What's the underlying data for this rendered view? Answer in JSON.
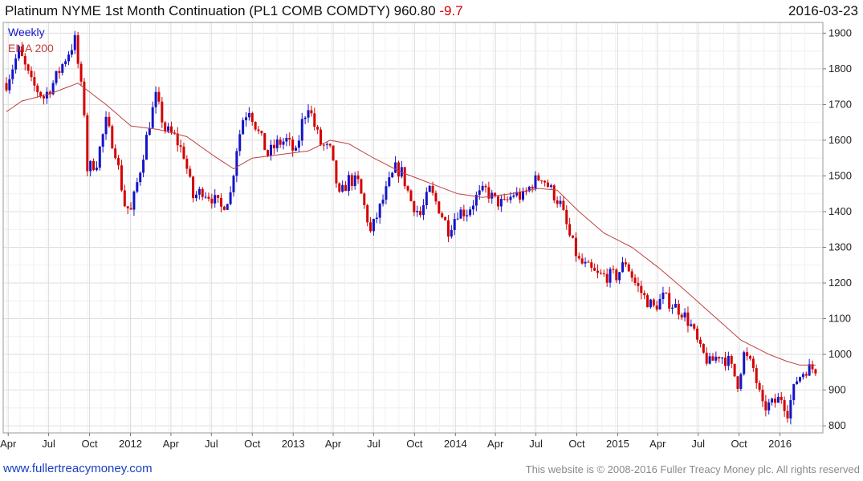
{
  "header": {
    "title": "Platinum NYME 1st Month Continuation (PL1 COMB COMDTY) 960.80",
    "change": "-9.7",
    "date": "2016-03-23"
  },
  "footer": {
    "website": "www.fullertreacymoney.com",
    "copyright": "This website is © 2008-2016 Fuller Treacy Money plc. All rights reserved"
  },
  "colors": {
    "up": "#1414c8",
    "down": "#d40000",
    "ema": "#c04040",
    "grid": "#dddddd"
  },
  "chart_data": {
    "type": "candlestick",
    "legend": [
      {
        "label": "Weekly",
        "color": "#1414c8"
      },
      {
        "label": "EMA 200",
        "color": "#c04040"
      }
    ],
    "ylim": [
      780,
      1930
    ],
    "yticks": [
      800,
      900,
      1000,
      1100,
      1200,
      1300,
      1400,
      1500,
      1600,
      1700,
      1800,
      1900
    ],
    "x_start": "2011-03-28",
    "x_end": "2016-03-23",
    "xticks": [
      {
        "label": "Apr",
        "date": "2011-04-01"
      },
      {
        "label": "Jul",
        "date": "2011-07-01"
      },
      {
        "label": "Oct",
        "date": "2011-10-01"
      },
      {
        "label": "2012",
        "date": "2012-01-01"
      },
      {
        "label": "Apr",
        "date": "2012-04-01"
      },
      {
        "label": "Jul",
        "date": "2012-07-01"
      },
      {
        "label": "Oct",
        "date": "2012-10-01"
      },
      {
        "label": "2013",
        "date": "2013-01-01"
      },
      {
        "label": "Apr",
        "date": "2013-04-01"
      },
      {
        "label": "Jul",
        "date": "2013-07-01"
      },
      {
        "label": "Oct",
        "date": "2013-10-01"
      },
      {
        "label": "2014",
        "date": "2014-01-01"
      },
      {
        "label": "Apr",
        "date": "2014-04-01"
      },
      {
        "label": "Jul",
        "date": "2014-07-01"
      },
      {
        "label": "Oct",
        "date": "2014-10-01"
      },
      {
        "label": "2015",
        "date": "2015-01-01"
      },
      {
        "label": "Apr",
        "date": "2015-04-01"
      },
      {
        "label": "Jul",
        "date": "2015-07-01"
      },
      {
        "label": "Oct",
        "date": "2015-10-01"
      },
      {
        "label": "2016",
        "date": "2016-01-01"
      }
    ],
    "anchors": [
      [
        "2011-03-28",
        1760
      ],
      [
        "2011-04-25",
        1850
      ],
      [
        "2011-05-23",
        1760
      ],
      [
        "2011-06-20",
        1720
      ],
      [
        "2011-07-11",
        1760
      ],
      [
        "2011-08-08",
        1830
      ],
      [
        "2011-08-29",
        1880
      ],
      [
        "2011-09-19",
        1680
      ],
      [
        "2011-09-26",
        1520
      ],
      [
        "2011-10-17",
        1540
      ],
      [
        "2011-11-07",
        1650
      ],
      [
        "2011-11-28",
        1570
      ],
      [
        "2011-12-19",
        1420
      ],
      [
        "2012-01-02",
        1400
      ],
      [
        "2012-01-23",
        1520
      ],
      [
        "2012-02-13",
        1650
      ],
      [
        "2012-02-27",
        1720
      ],
      [
        "2012-03-19",
        1630
      ],
      [
        "2012-04-09",
        1610
      ],
      [
        "2012-04-30",
        1560
      ],
      [
        "2012-05-21",
        1440
      ],
      [
        "2012-06-11",
        1460
      ],
      [
        "2012-07-02",
        1440
      ],
      [
        "2012-07-23",
        1410
      ],
      [
        "2012-08-13",
        1450
      ],
      [
        "2012-08-27",
        1580
      ],
      [
        "2012-09-10",
        1660
      ],
      [
        "2012-09-24",
        1690
      ],
      [
        "2012-10-15",
        1620
      ],
      [
        "2012-11-05",
        1560
      ],
      [
        "2012-11-26",
        1590
      ],
      [
        "2012-12-17",
        1600
      ],
      [
        "2013-01-07",
        1560
      ],
      [
        "2013-01-21",
        1650
      ],
      [
        "2013-02-04",
        1700
      ],
      [
        "2013-02-18",
        1640
      ],
      [
        "2013-03-04",
        1590
      ],
      [
        "2013-03-25",
        1570
      ],
      [
        "2013-04-15",
        1440
      ],
      [
        "2013-05-06",
        1490
      ],
      [
        "2013-05-27",
        1480
      ],
      [
        "2013-06-17",
        1380
      ],
      [
        "2013-06-24",
        1340
      ],
      [
        "2013-07-15",
        1410
      ],
      [
        "2013-08-05",
        1480
      ],
      [
        "2013-08-19",
        1520
      ],
      [
        "2013-09-02",
        1510
      ],
      [
        "2013-09-23",
        1430
      ],
      [
        "2013-10-14",
        1390
      ],
      [
        "2013-11-04",
        1460
      ],
      [
        "2013-11-25",
        1410
      ],
      [
        "2013-12-16",
        1350
      ],
      [
        "2014-01-06",
        1400
      ],
      [
        "2014-01-27",
        1400
      ],
      [
        "2014-02-17",
        1440
      ],
      [
        "2014-03-10",
        1460
      ],
      [
        "2014-03-31",
        1430
      ],
      [
        "2014-04-21",
        1420
      ],
      [
        "2014-05-12",
        1450
      ],
      [
        "2014-06-02",
        1440
      ],
      [
        "2014-06-23",
        1480
      ],
      [
        "2014-07-14",
        1500
      ],
      [
        "2014-08-04",
        1460
      ],
      [
        "2014-08-25",
        1420
      ],
      [
        "2014-09-15",
        1330
      ],
      [
        "2014-10-06",
        1260
      ],
      [
        "2014-10-27",
        1240
      ],
      [
        "2014-11-17",
        1220
      ],
      [
        "2014-12-08",
        1220
      ],
      [
        "2014-12-29",
        1220
      ],
      [
        "2015-01-19",
        1260
      ],
      [
        "2015-02-09",
        1200
      ],
      [
        "2015-03-02",
        1160
      ],
      [
        "2015-03-23",
        1130
      ],
      [
        "2015-04-13",
        1160
      ],
      [
        "2015-05-04",
        1140
      ],
      [
        "2015-05-25",
        1120
      ],
      [
        "2015-06-15",
        1080
      ],
      [
        "2015-07-06",
        1010
      ],
      [
        "2015-07-27",
        975
      ],
      [
        "2015-08-17",
        1000
      ],
      [
        "2015-09-07",
        980
      ],
      [
        "2015-09-28",
        920
      ],
      [
        "2015-10-12",
        1000
      ],
      [
        "2015-11-02",
        960
      ],
      [
        "2015-11-23",
        850
      ],
      [
        "2015-12-14",
        860
      ],
      [
        "2016-01-04",
        880
      ],
      [
        "2016-01-18",
        840
      ],
      [
        "2016-02-08",
        930
      ],
      [
        "2016-02-29",
        960
      ],
      [
        "2016-03-21",
        961
      ]
    ],
    "ema_anchors": [
      [
        "2011-03-28",
        1680
      ],
      [
        "2011-05-02",
        1710
      ],
      [
        "2011-07-04",
        1730
      ],
      [
        "2011-09-05",
        1760
      ],
      [
        "2011-11-07",
        1700
      ],
      [
        "2012-01-02",
        1640
      ],
      [
        "2012-03-05",
        1630
      ],
      [
        "2012-05-07",
        1610
      ],
      [
        "2012-07-02",
        1560
      ],
      [
        "2012-08-20",
        1520
      ],
      [
        "2012-10-01",
        1550
      ],
      [
        "2012-12-03",
        1560
      ],
      [
        "2013-02-04",
        1570
      ],
      [
        "2013-03-25",
        1600
      ],
      [
        "2013-05-06",
        1590
      ],
      [
        "2013-07-01",
        1550
      ],
      [
        "2013-09-02",
        1510
      ],
      [
        "2013-11-04",
        1480
      ],
      [
        "2014-01-06",
        1450
      ],
      [
        "2014-03-03",
        1440
      ],
      [
        "2014-05-05",
        1450
      ],
      [
        "2014-07-07",
        1465
      ],
      [
        "2014-08-18",
        1460
      ],
      [
        "2014-10-06",
        1400
      ],
      [
        "2014-12-01",
        1340
      ],
      [
        "2015-02-02",
        1300
      ],
      [
        "2015-04-06",
        1240
      ],
      [
        "2015-06-01",
        1180
      ],
      [
        "2015-08-03",
        1110
      ],
      [
        "2015-10-05",
        1040
      ],
      [
        "2015-12-07",
        1000
      ],
      [
        "2016-01-18",
        980
      ],
      [
        "2016-02-15",
        970
      ],
      [
        "2016-03-21",
        970
      ]
    ]
  }
}
